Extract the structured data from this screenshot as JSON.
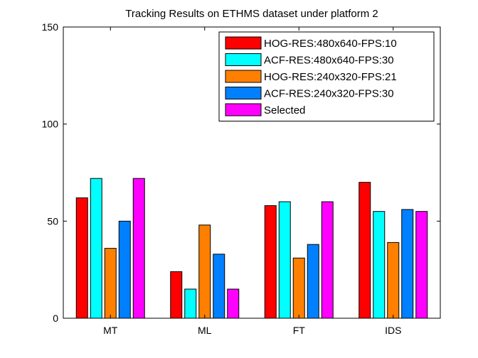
{
  "chart_data": {
    "type": "bar",
    "title": "Tracking Results on ETHMS dataset under platform 2",
    "xlabel": "",
    "ylabel": "",
    "categories": [
      "MT",
      "ML",
      "FT",
      "IDS"
    ],
    "ylim": [
      0,
      150
    ],
    "yticks": [
      0,
      50,
      100,
      150
    ],
    "grid": false,
    "legend_position": "top-right",
    "series": [
      {
        "name": "HOG-RES:480x640-FPS:10",
        "color": "#ff0000",
        "values": [
          62,
          24,
          58,
          70
        ]
      },
      {
        "name": "ACF-RES:480x640-FPS:30",
        "color": "#00ffff",
        "values": [
          72,
          15,
          60,
          55
        ]
      },
      {
        "name": "HOG-RES:240x320-FPS:21",
        "color": "#ff8000",
        "values": [
          36,
          48,
          31,
          39
        ]
      },
      {
        "name": "ACF-RES:240x320-FPS:30",
        "color": "#0080ff",
        "values": [
          50,
          33,
          38,
          56
        ]
      },
      {
        "name": "Selected",
        "color": "#ff00ff",
        "values": [
          72,
          15,
          60,
          55
        ]
      }
    ]
  }
}
